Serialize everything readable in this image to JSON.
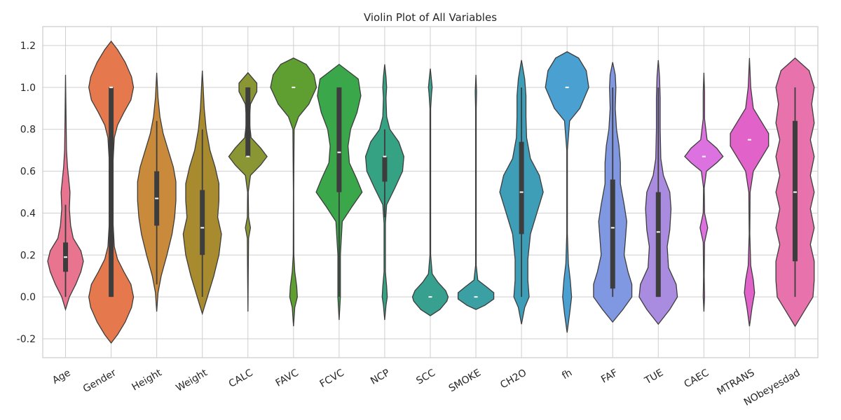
{
  "chart_data": {
    "type": "violin",
    "title": "Violin Plot of All Variables",
    "xlabel": "",
    "ylabel": "",
    "ylim": [
      -0.29,
      1.29
    ],
    "yticks": [
      "-0.2",
      "0.0",
      "0.2",
      "0.4",
      "0.6",
      "0.8",
      "1.0",
      "1.2"
    ],
    "ytick_values": [
      -0.2,
      0.0,
      0.2,
      0.4,
      0.6,
      0.8,
      1.0,
      1.2
    ],
    "grid": true,
    "categories": [
      "Age",
      "Gender",
      "Height",
      "Weight",
      "CALC",
      "FAVC",
      "FCVC",
      "NCP",
      "SCC",
      "SMOKE",
      "CH2O",
      "fh",
      "FAF",
      "TUE",
      "CAEC",
      "MTRANS",
      "NObeyesdad"
    ],
    "colors": [
      "#e8748f",
      "#e5794d",
      "#c98b3b",
      "#a88a2f",
      "#8a9534",
      "#5f9e31",
      "#3aa84a",
      "#35a283",
      "#37a08f",
      "#3aa0a3",
      "#3e9eb7",
      "#4aa0d0",
      "#8097e2",
      "#a98be0",
      "#dc72e0",
      "#e163c9",
      "#e772ac"
    ],
    "violins": [
      {
        "name": "Age",
        "min": -0.06,
        "max": 1.06,
        "q1": 0.12,
        "median": 0.19,
        "q3": 0.26,
        "wlo": 0.0,
        "whi": 0.44,
        "profile": [
          [
            -0.06,
            0
          ],
          [
            0.0,
            0.06
          ],
          [
            0.06,
            0.16
          ],
          [
            0.12,
            0.24
          ],
          [
            0.17,
            0.28
          ],
          [
            0.22,
            0.24
          ],
          [
            0.28,
            0.12
          ],
          [
            0.34,
            0.08
          ],
          [
            0.42,
            0.06
          ],
          [
            0.5,
            0.07
          ],
          [
            0.56,
            0.05
          ],
          [
            0.62,
            0.03
          ],
          [
            0.7,
            0.015
          ],
          [
            0.85,
            0.008
          ],
          [
            1.06,
            0
          ]
        ]
      },
      {
        "name": "Gender",
        "min": -0.22,
        "max": 1.22,
        "q1": 0.0,
        "median": 1.0,
        "q3": 1.0,
        "wlo": 0.0,
        "whi": 1.0,
        "profile": [
          [
            -0.22,
            0
          ],
          [
            -0.18,
            0.1
          ],
          [
            -0.12,
            0.22
          ],
          [
            -0.05,
            0.32
          ],
          [
            0.0,
            0.35
          ],
          [
            0.06,
            0.31
          ],
          [
            0.12,
            0.2
          ],
          [
            0.18,
            0.1
          ],
          [
            0.24,
            0.05
          ],
          [
            0.35,
            0.03
          ],
          [
            0.5,
            0.03
          ],
          [
            0.65,
            0.03
          ],
          [
            0.76,
            0.05
          ],
          [
            0.82,
            0.1
          ],
          [
            0.88,
            0.2
          ],
          [
            0.94,
            0.31
          ],
          [
            1.0,
            0.35
          ],
          [
            1.05,
            0.32
          ],
          [
            1.12,
            0.22
          ],
          [
            1.18,
            0.1
          ],
          [
            1.22,
            0
          ]
        ]
      },
      {
        "name": "Height",
        "min": -0.07,
        "max": 1.07,
        "q1": 0.34,
        "median": 0.47,
        "q3": 0.6,
        "wlo": 0.06,
        "whi": 0.84,
        "profile": [
          [
            -0.07,
            0
          ],
          [
            0.02,
            0.02
          ],
          [
            0.1,
            0.07
          ],
          [
            0.2,
            0.16
          ],
          [
            0.3,
            0.24
          ],
          [
            0.38,
            0.28
          ],
          [
            0.46,
            0.3
          ],
          [
            0.55,
            0.3
          ],
          [
            0.62,
            0.26
          ],
          [
            0.7,
            0.18
          ],
          [
            0.78,
            0.1
          ],
          [
            0.86,
            0.05
          ],
          [
            0.95,
            0.02
          ],
          [
            1.07,
            0
          ]
        ]
      },
      {
        "name": "Weight",
        "min": -0.08,
        "max": 1.08,
        "q1": 0.2,
        "median": 0.33,
        "q3": 0.51,
        "wlo": 0.0,
        "whi": 0.8,
        "profile": [
          [
            -0.08,
            0
          ],
          [
            0.0,
            0.08
          ],
          [
            0.1,
            0.18
          ],
          [
            0.2,
            0.26
          ],
          [
            0.3,
            0.3
          ],
          [
            0.38,
            0.24
          ],
          [
            0.46,
            0.26
          ],
          [
            0.54,
            0.26
          ],
          [
            0.62,
            0.2
          ],
          [
            0.7,
            0.12
          ],
          [
            0.8,
            0.06
          ],
          [
            0.9,
            0.03
          ],
          [
            1.08,
            0
          ]
        ]
      },
      {
        "name": "CALC",
        "min": -0.07,
        "max": 1.07,
        "q1": 0.67,
        "median": 0.67,
        "q3": 1.0,
        "wlo": 0.67,
        "whi": 1.0,
        "profile": [
          [
            -0.07,
            0
          ],
          [
            0.1,
            0.005
          ],
          [
            0.28,
            0.01
          ],
          [
            0.33,
            0.04
          ],
          [
            0.38,
            0.01
          ],
          [
            0.5,
            0.005
          ],
          [
            0.58,
            0.04
          ],
          [
            0.63,
            0.2
          ],
          [
            0.67,
            0.3
          ],
          [
            0.71,
            0.2
          ],
          [
            0.76,
            0.05
          ],
          [
            0.84,
            0.02
          ],
          [
            0.92,
            0.04
          ],
          [
            0.98,
            0.14
          ],
          [
            1.02,
            0.14
          ],
          [
            1.07,
            0
          ]
        ]
      },
      {
        "name": "FAVC",
        "min": -0.14,
        "max": 1.14,
        "q1": 1.0,
        "median": 1.0,
        "q3": 1.0,
        "wlo": 1.0,
        "whi": 1.0,
        "profile": [
          [
            -0.14,
            0
          ],
          [
            -0.05,
            0.02
          ],
          [
            0.0,
            0.06
          ],
          [
            0.05,
            0.05
          ],
          [
            0.12,
            0.02
          ],
          [
            0.2,
            0.005
          ],
          [
            0.5,
            0.003
          ],
          [
            0.8,
            0.01
          ],
          [
            0.86,
            0.08
          ],
          [
            0.92,
            0.24
          ],
          [
            1.0,
            0.36
          ],
          [
            1.06,
            0.32
          ],
          [
            1.11,
            0.2
          ],
          [
            1.14,
            0
          ]
        ]
      },
      {
        "name": "FCVC",
        "min": -0.11,
        "max": 1.11,
        "q1": 0.5,
        "median": 0.69,
        "q3": 1.0,
        "wlo": 0.0,
        "whi": 1.0,
        "profile": [
          [
            -0.11,
            0
          ],
          [
            0.0,
            0.02
          ],
          [
            0.2,
            0.02
          ],
          [
            0.36,
            0.05
          ],
          [
            0.43,
            0.2
          ],
          [
            0.5,
            0.36
          ],
          [
            0.56,
            0.28
          ],
          [
            0.64,
            0.16
          ],
          [
            0.72,
            0.14
          ],
          [
            0.8,
            0.18
          ],
          [
            0.88,
            0.28
          ],
          [
            0.96,
            0.34
          ],
          [
            1.04,
            0.3
          ],
          [
            1.11,
            0
          ]
        ]
      },
      {
        "name": "NCP",
        "min": -0.11,
        "max": 1.11,
        "q1": 0.55,
        "median": 0.67,
        "q3": 0.67,
        "wlo": 0.38,
        "whi": 0.8,
        "profile": [
          [
            -0.11,
            0
          ],
          [
            -0.04,
            0.02
          ],
          [
            0.0,
            0.04
          ],
          [
            0.05,
            0.03
          ],
          [
            0.12,
            0.01
          ],
          [
            0.35,
            0.01
          ],
          [
            0.44,
            0.03
          ],
          [
            0.52,
            0.16
          ],
          [
            0.6,
            0.28
          ],
          [
            0.67,
            0.3
          ],
          [
            0.74,
            0.22
          ],
          [
            0.8,
            0.08
          ],
          [
            0.86,
            0.03
          ],
          [
            0.95,
            0.02
          ],
          [
            1.0,
            0.03
          ],
          [
            1.05,
            0.02
          ],
          [
            1.11,
            0
          ]
        ]
      },
      {
        "name": "SCC",
        "min": -0.09,
        "max": 1.09,
        "q1": 0.0,
        "median": 0.0,
        "q3": 0.0,
        "wlo": 0.0,
        "whi": 0.0,
        "profile": [
          [
            -0.09,
            0
          ],
          [
            -0.06,
            0.15
          ],
          [
            -0.02,
            0.26
          ],
          [
            0.0,
            0.28
          ],
          [
            0.03,
            0.24
          ],
          [
            0.07,
            0.12
          ],
          [
            0.11,
            0.03
          ],
          [
            0.2,
            0.005
          ],
          [
            0.9,
            0.005
          ],
          [
            0.97,
            0.02
          ],
          [
            1.0,
            0.03
          ],
          [
            1.03,
            0.02
          ],
          [
            1.09,
            0
          ]
        ]
      },
      {
        "name": "SMOKE",
        "min": -0.06,
        "max": 1.06,
        "q1": 0.0,
        "median": 0.0,
        "q3": 0.0,
        "wlo": 0.0,
        "whi": 0.0,
        "profile": [
          [
            -0.06,
            0
          ],
          [
            -0.04,
            0.14
          ],
          [
            -0.01,
            0.28
          ],
          [
            0.02,
            0.28
          ],
          [
            0.05,
            0.16
          ],
          [
            0.08,
            0.03
          ],
          [
            0.15,
            0.005
          ],
          [
            0.9,
            0.005
          ],
          [
            0.98,
            0.01
          ],
          [
            1.06,
            0
          ]
        ]
      },
      {
        "name": "CH2O",
        "min": -0.13,
        "max": 1.13,
        "q1": 0.3,
        "median": 0.5,
        "q3": 0.74,
        "wlo": 0.0,
        "whi": 1.0,
        "profile": [
          [
            -0.13,
            0
          ],
          [
            -0.05,
            0.05
          ],
          [
            0.0,
            0.12
          ],
          [
            0.08,
            0.1
          ],
          [
            0.18,
            0.1
          ],
          [
            0.3,
            0.14
          ],
          [
            0.4,
            0.24
          ],
          [
            0.5,
            0.34
          ],
          [
            0.58,
            0.28
          ],
          [
            0.66,
            0.14
          ],
          [
            0.76,
            0.08
          ],
          [
            0.86,
            0.07
          ],
          [
            0.96,
            0.07
          ],
          [
            1.04,
            0.05
          ],
          [
            1.13,
            0
          ]
        ]
      },
      {
        "name": "fh",
        "min": -0.17,
        "max": 1.17,
        "q1": 1.0,
        "median": 1.0,
        "q3": 1.0,
        "wlo": 1.0,
        "whi": 1.0,
        "profile": [
          [
            -0.17,
            0
          ],
          [
            -0.08,
            0.04
          ],
          [
            0.0,
            0.07
          ],
          [
            0.08,
            0.05
          ],
          [
            0.16,
            0.02
          ],
          [
            0.3,
            0.005
          ],
          [
            0.7,
            0.005
          ],
          [
            0.84,
            0.04
          ],
          [
            0.9,
            0.2
          ],
          [
            1.0,
            0.34
          ],
          [
            1.08,
            0.3
          ],
          [
            1.14,
            0.18
          ],
          [
            1.17,
            0
          ]
        ]
      },
      {
        "name": "FAF",
        "min": -0.12,
        "max": 1.12,
        "q1": 0.04,
        "median": 0.33,
        "q3": 0.56,
        "wlo": 0.0,
        "whi": 1.0,
        "profile": [
          [
            -0.12,
            0
          ],
          [
            -0.06,
            0.16
          ],
          [
            0.0,
            0.3
          ],
          [
            0.06,
            0.3
          ],
          [
            0.12,
            0.24
          ],
          [
            0.2,
            0.18
          ],
          [
            0.28,
            0.2
          ],
          [
            0.36,
            0.22
          ],
          [
            0.44,
            0.18
          ],
          [
            0.54,
            0.12
          ],
          [
            0.64,
            0.12
          ],
          [
            0.72,
            0.1
          ],
          [
            0.8,
            0.06
          ],
          [
            0.9,
            0.04
          ],
          [
            1.0,
            0.05
          ],
          [
            1.06,
            0.04
          ],
          [
            1.12,
            0
          ]
        ]
      },
      {
        "name": "TUE",
        "min": -0.13,
        "max": 1.13,
        "q1": 0.0,
        "median": 0.31,
        "q3": 0.5,
        "wlo": 0.0,
        "whi": 1.0,
        "profile": [
          [
            -0.13,
            0
          ],
          [
            -0.06,
            0.18
          ],
          [
            0.0,
            0.3
          ],
          [
            0.06,
            0.28
          ],
          [
            0.14,
            0.16
          ],
          [
            0.24,
            0.14
          ],
          [
            0.32,
            0.18
          ],
          [
            0.42,
            0.2
          ],
          [
            0.5,
            0.18
          ],
          [
            0.58,
            0.08
          ],
          [
            0.66,
            0.04
          ],
          [
            0.8,
            0.03
          ],
          [
            0.95,
            0.03
          ],
          [
            1.05,
            0.02
          ],
          [
            1.13,
            0
          ]
        ]
      },
      {
        "name": "CAEC",
        "min": -0.07,
        "max": 1.07,
        "q1": 0.67,
        "median": 0.67,
        "q3": 0.67,
        "wlo": 0.67,
        "whi": 0.67,
        "profile": [
          [
            -0.07,
            0
          ],
          [
            0.0,
            0.01
          ],
          [
            0.1,
            0.005
          ],
          [
            0.26,
            0.01
          ],
          [
            0.33,
            0.06
          ],
          [
            0.4,
            0.01
          ],
          [
            0.52,
            0.005
          ],
          [
            0.6,
            0.04
          ],
          [
            0.64,
            0.2
          ],
          [
            0.67,
            0.3
          ],
          [
            0.71,
            0.2
          ],
          [
            0.75,
            0.05
          ],
          [
            0.85,
            0.01
          ],
          [
            0.98,
            0.01
          ],
          [
            1.07,
            0
          ]
        ]
      },
      {
        "name": "MTRANS",
        "min": -0.14,
        "max": 1.14,
        "q1": 0.75,
        "median": 0.75,
        "q3": 0.75,
        "wlo": 0.75,
        "whi": 0.75,
        "profile": [
          [
            -0.14,
            0
          ],
          [
            -0.05,
            0.04
          ],
          [
            0.02,
            0.08
          ],
          [
            0.08,
            0.06
          ],
          [
            0.15,
            0.02
          ],
          [
            0.3,
            0.005
          ],
          [
            0.5,
            0.01
          ],
          [
            0.6,
            0.06
          ],
          [
            0.66,
            0.18
          ],
          [
            0.72,
            0.3
          ],
          [
            0.78,
            0.3
          ],
          [
            0.84,
            0.18
          ],
          [
            0.9,
            0.06
          ],
          [
            1.0,
            0.02
          ],
          [
            1.14,
            0
          ]
        ]
      },
      {
        "name": "NObeyesdad",
        "min": -0.14,
        "max": 1.14,
        "q1": 0.17,
        "median": 0.5,
        "q3": 0.84,
        "wlo": 0.0,
        "whi": 1.0,
        "profile": [
          [
            -0.14,
            0
          ],
          [
            -0.08,
            0.12
          ],
          [
            0.0,
            0.28
          ],
          [
            0.08,
            0.3
          ],
          [
            0.17,
            0.3
          ],
          [
            0.25,
            0.24
          ],
          [
            0.33,
            0.3
          ],
          [
            0.42,
            0.24
          ],
          [
            0.5,
            0.3
          ],
          [
            0.58,
            0.24
          ],
          [
            0.67,
            0.3
          ],
          [
            0.75,
            0.24
          ],
          [
            0.83,
            0.3
          ],
          [
            0.92,
            0.26
          ],
          [
            1.0,
            0.3
          ],
          [
            1.08,
            0.22
          ],
          [
            1.14,
            0
          ]
        ]
      }
    ]
  }
}
